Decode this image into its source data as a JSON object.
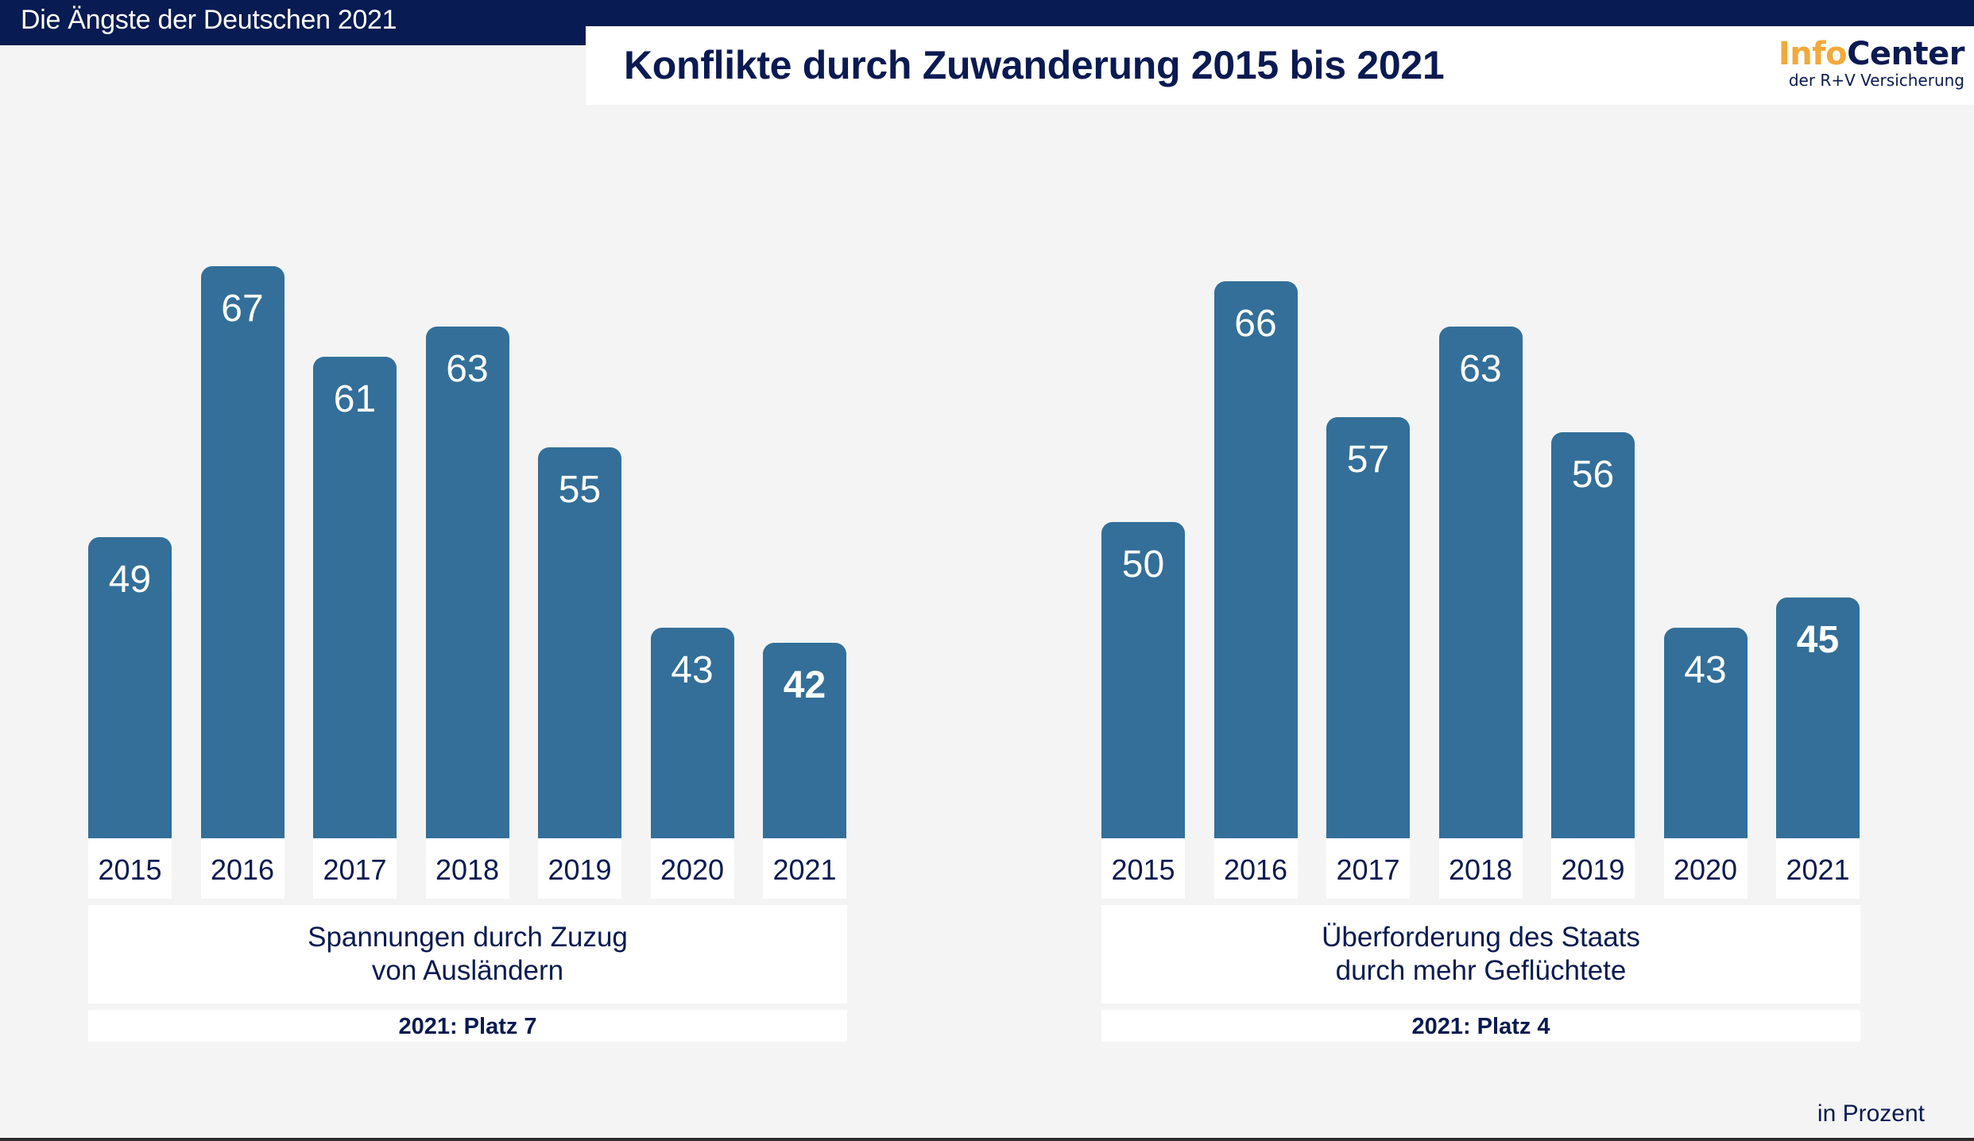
{
  "header": {
    "series_title": "Die Ängste der Deutschen 2021",
    "title": "Konflikte durch Zuwanderung 2015 bis 2021",
    "logo": {
      "main_part1": "Info",
      "main_part2": "Center",
      "sub": "der R+V Versicherung"
    }
  },
  "footnote": "in Prozent",
  "colors": {
    "bar": "#336f99",
    "navy": "#081b52",
    "logo_orange": "#f2a93b",
    "background": "#f4f4f4"
  },
  "chart_data": [
    {
      "type": "bar",
      "title": "Spannungen durch Zuzug von Ausländern",
      "title_lines": [
        "Spannungen durch Zuzug",
        "von Ausländern"
      ],
      "rank": "2021: Platz 7",
      "categories": [
        "2015",
        "2016",
        "2017",
        "2018",
        "2019",
        "2020",
        "2021"
      ],
      "values": [
        49,
        67,
        61,
        63,
        55,
        43,
        42
      ],
      "highlight_index": 6,
      "xlabel": "",
      "ylabel": "in Prozent",
      "ylim": [
        29,
        70
      ],
      "grid": false
    },
    {
      "type": "bar",
      "title": "Überforderung des Staats durch mehr Geflüchtete",
      "title_lines": [
        "Überforderung des Staats",
        "durch mehr Geflüchtete"
      ],
      "rank": "2021: Platz 4",
      "categories": [
        "2015",
        "2016",
        "2017",
        "2018",
        "2019",
        "2020",
        "2021"
      ],
      "values": [
        50,
        66,
        57,
        63,
        56,
        43,
        45
      ],
      "highlight_index": 6,
      "xlabel": "",
      "ylabel": "in Prozent",
      "ylim": [
        29,
        70
      ],
      "grid": false
    }
  ]
}
